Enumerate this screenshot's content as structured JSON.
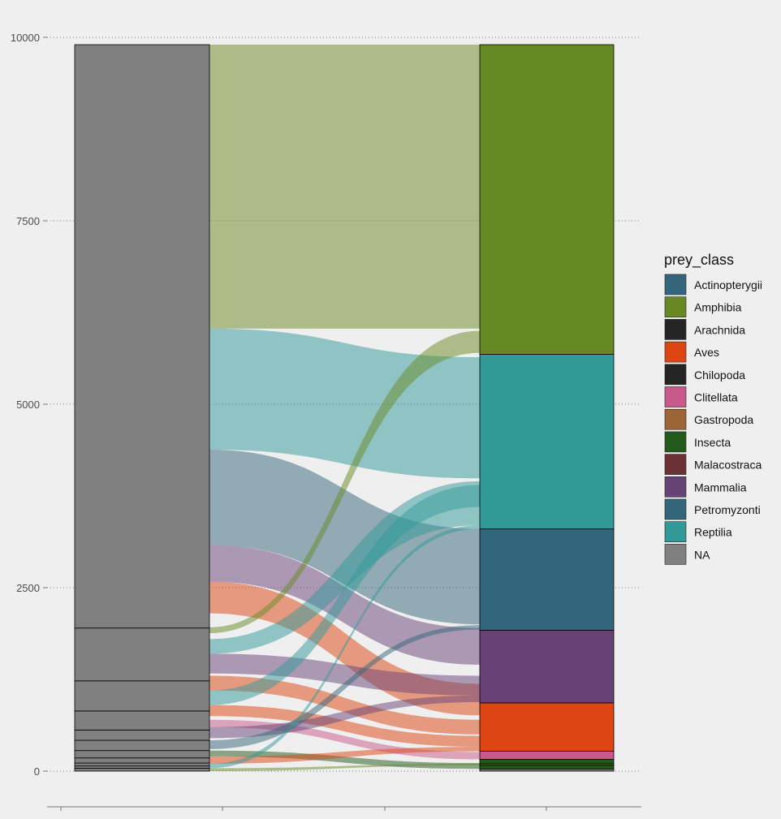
{
  "chart_data": {
    "type": "alluvial",
    "ylim": [
      0,
      10000
    ],
    "y_ticks": [
      0,
      2500,
      5000,
      7500,
      10000
    ],
    "y_tick_labels": [
      "0",
      "2500",
      "5000",
      "7500",
      "10000"
    ],
    "grid": "horizontal-dotted",
    "left_axis": {
      "fill_color": "#808080",
      "breaks": [
        0,
        40,
        70,
        110,
        180,
        280,
        420,
        560,
        820,
        1230,
        1950,
        9900
      ]
    },
    "right_axis": {
      "strata": [
        {
          "name": "NA",
          "from": 0,
          "to": 30
        },
        {
          "name": "Insecta",
          "from": 30,
          "to": 80
        },
        {
          "name": "Amphibia",
          "from": 80,
          "to": 100
        },
        {
          "name": "Insecta",
          "from": 100,
          "to": 160
        },
        {
          "name": "Clitellata",
          "from": 160,
          "to": 270
        },
        {
          "name": "Aves",
          "from": 270,
          "to": 930
        },
        {
          "name": "Mammalia",
          "from": 930,
          "to": 1920
        },
        {
          "name": "Petromyzonti",
          "from": 1920,
          "to": 3300
        },
        {
          "name": "Reptilia",
          "from": 3300,
          "to": 5680
        },
        {
          "name": "Amphibia",
          "from": 5680,
          "to": 9900
        }
      ]
    },
    "flows": [
      {
        "class": "Amphibia",
        "l0": 6030,
        "l1": 9900,
        "r0": 6030,
        "r1": 9900
      },
      {
        "class": "Reptilia",
        "l0": 4380,
        "l1": 6030,
        "r0": 3990,
        "r1": 5640
      },
      {
        "class": "Petromyzonti",
        "l0": 3080,
        "l1": 4380,
        "r0": 2000,
        "r1": 3300
      },
      {
        "class": "Mammalia",
        "l0": 2580,
        "l1": 3080,
        "r0": 1450,
        "r1": 1950
      },
      {
        "class": "Aves",
        "l0": 2150,
        "l1": 2580,
        "r0": 760,
        "r1": 1190
      },
      {
        "class": "Amphibia",
        "l0": 1880,
        "l1": 1960,
        "r0": 5700,
        "r1": 6000
      },
      {
        "class": "Reptilia",
        "l0": 1600,
        "l1": 1800,
        "r0": 3350,
        "r1": 3950
      },
      {
        "class": "Mammalia",
        "l0": 1330,
        "l1": 1600,
        "r0": 1030,
        "r1": 1300
      },
      {
        "class": "Aves",
        "l0": 1100,
        "l1": 1300,
        "r0": 500,
        "r1": 700
      },
      {
        "class": "Reptilia",
        "l0": 900,
        "l1": 1100,
        "r0": 3600,
        "r1": 3900
      },
      {
        "class": "Aves",
        "l0": 750,
        "l1": 900,
        "r0": 330,
        "r1": 480
      },
      {
        "class": "Clitellata",
        "l0": 600,
        "l1": 700,
        "r0": 160,
        "r1": 260
      },
      {
        "class": "Mammalia",
        "l0": 450,
        "l1": 600,
        "r0": 940,
        "r1": 1030
      },
      {
        "class": "Petromyzonti",
        "l0": 300,
        "l1": 420,
        "r0": 1930,
        "r1": 1990
      },
      {
        "class": "Insecta",
        "l0": 200,
        "l1": 280,
        "r0": 30,
        "r1": 110
      },
      {
        "class": "Aves",
        "l0": 100,
        "l1": 200,
        "r0": 270,
        "r1": 330
      },
      {
        "class": "Reptilia",
        "l0": 40,
        "l1": 100,
        "r0": 3300,
        "r1": 3350
      },
      {
        "class": "Amphibia",
        "l0": 0,
        "l1": 40,
        "r0": 80,
        "r1": 100
      }
    ],
    "legend": {
      "title": "prey_class",
      "placement": "right",
      "items": [
        {
          "label": "Actinopterygii",
          "color": "#33667a"
        },
        {
          "label": "Amphibia",
          "color": "#678924"
        },
        {
          "label": "Arachnida",
          "color": "#242424"
        },
        {
          "label": "Aves",
          "color": "#dc4612"
        },
        {
          "label": "Chilopoda",
          "color": "#242424"
        },
        {
          "label": "Clitellata",
          "color": "#c9598a"
        },
        {
          "label": "Gastropoda",
          "color": "#9a6537"
        },
        {
          "label": "Insecta",
          "color": "#225a1b"
        },
        {
          "label": "Malacostraca",
          "color": "#6a3233"
        },
        {
          "label": "Mammalia",
          "color": "#674275"
        },
        {
          "label": "Petromyzonti",
          "color": "#33667a"
        },
        {
          "label": "Reptilia",
          "color": "#329999"
        },
        {
          "label": "NA",
          "color": "#808080"
        }
      ]
    }
  }
}
